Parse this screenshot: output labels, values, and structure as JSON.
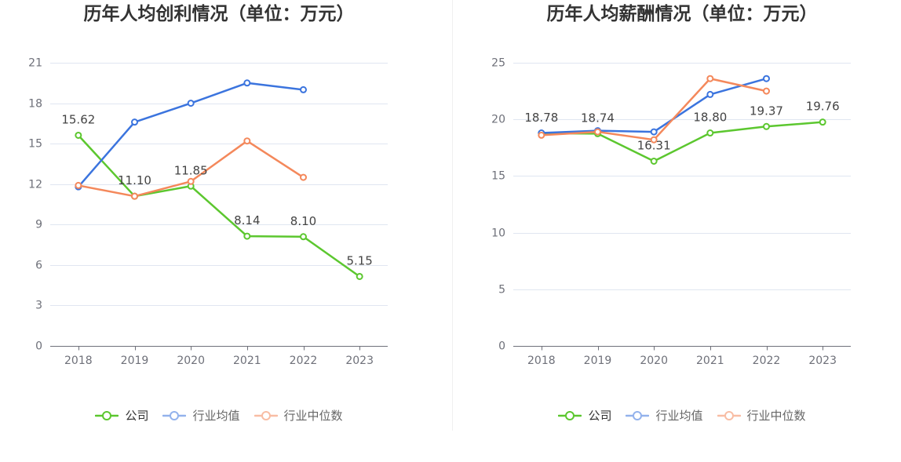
{
  "chart_data": [
    {
      "type": "line",
      "title": "历年人均创利情况（单位：万元）",
      "categories": [
        "2018",
        "2019",
        "2020",
        "2021",
        "2022",
        "2023"
      ],
      "ylim": [
        0,
        21
      ],
      "yticks": [
        0,
        3,
        6,
        9,
        12,
        15,
        18,
        21
      ],
      "grid": true,
      "legend": "bottom-center",
      "series": [
        {
          "name": "公司",
          "color": "#5cc72f",
          "data_labels": true,
          "values": [
            15.62,
            11.1,
            11.85,
            8.14,
            8.1,
            5.15
          ]
        },
        {
          "name": "行业均值",
          "color": "#3b74de",
          "values": [
            11.8,
            16.6,
            18.0,
            19.5,
            19.0,
            null
          ]
        },
        {
          "name": "行业中位数",
          "color": "#f4885b",
          "values": [
            11.9,
            11.1,
            12.2,
            15.2,
            12.5,
            null
          ]
        }
      ]
    },
    {
      "type": "line",
      "title": "历年人均薪酬情况（单位：万元）",
      "categories": [
        "2018",
        "2019",
        "2020",
        "2021",
        "2022",
        "2023"
      ],
      "ylim": [
        0,
        25
      ],
      "yticks": [
        0,
        5,
        10,
        15,
        20,
        25
      ],
      "grid": true,
      "legend": "bottom-center",
      "series": [
        {
          "name": "公司",
          "color": "#5cc72f",
          "data_labels": true,
          "values": [
            18.78,
            18.74,
            16.31,
            18.8,
            19.37,
            19.76
          ]
        },
        {
          "name": "行业均值",
          "color": "#3b74de",
          "values": [
            18.8,
            19.0,
            18.9,
            22.2,
            23.6,
            null
          ]
        },
        {
          "name": "行业中位数",
          "color": "#f4885b",
          "values": [
            18.6,
            18.9,
            18.2,
            23.6,
            22.5,
            null
          ]
        }
      ]
    }
  ]
}
